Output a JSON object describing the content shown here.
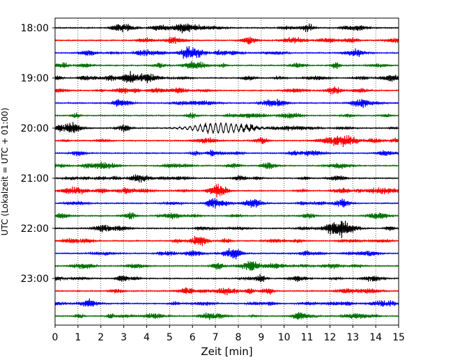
{
  "chart_data": {
    "type": "line",
    "xlabel": "Zeit  [min]",
    "ylabel": "UTC (Lokalzeit = UTC + 01:00)",
    "xlim": [
      0,
      15
    ],
    "x_ticks": [
      "0",
      "1",
      "2",
      "3",
      "4",
      "5",
      "6",
      "7",
      "8",
      "9",
      "10",
      "11",
      "12",
      "13",
      "14",
      "15"
    ],
    "y_ticks": [
      "18:00",
      "19:00",
      "20:00",
      "21:00",
      "22:00",
      "23:00"
    ],
    "grid": "vertical dotted lines at each minute",
    "trace_interval_min": 15,
    "traces_count": 24,
    "trace_colors": [
      "#000000",
      "#ff0000",
      "#0000ff",
      "#007000"
    ],
    "event": {
      "trace_start": "20:00",
      "x_from": 4.5,
      "x_to": 9.8,
      "note": "larger amplitude waveform around 7 min"
    }
  }
}
